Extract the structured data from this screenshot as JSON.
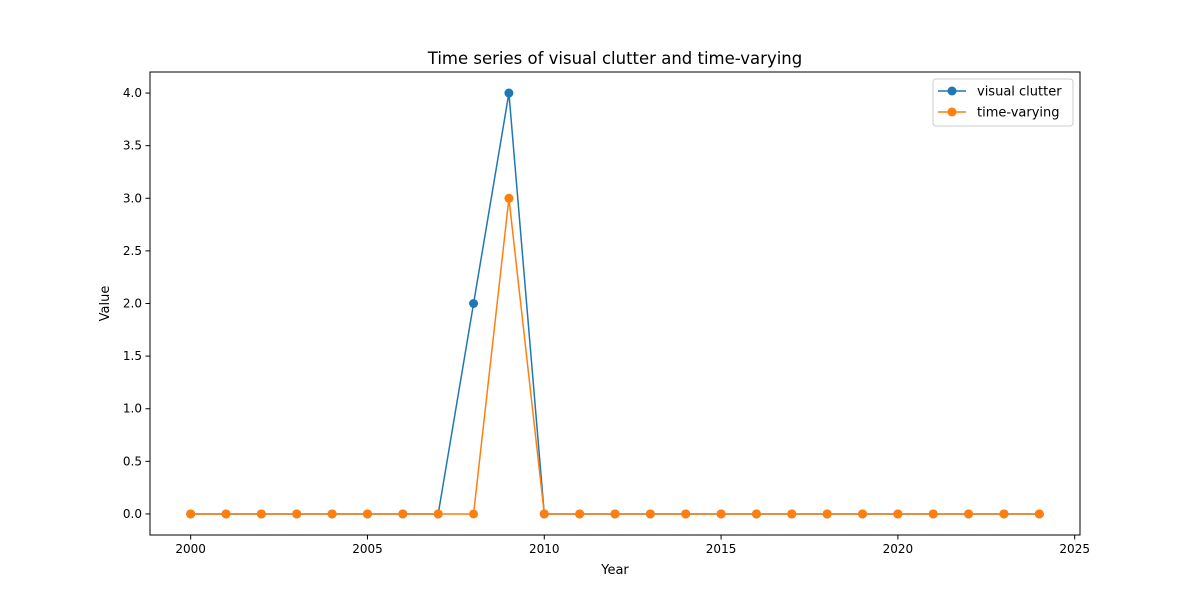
{
  "chart_data": {
    "type": "line",
    "title": "Time series of visual clutter and time-varying",
    "xlabel": "Year",
    "ylabel": "Value",
    "x": [
      2000,
      2001,
      2002,
      2003,
      2004,
      2005,
      2006,
      2007,
      2008,
      2009,
      2010,
      2011,
      2012,
      2013,
      2014,
      2015,
      2016,
      2017,
      2018,
      2019,
      2020,
      2021,
      2022,
      2023,
      2024
    ],
    "series": [
      {
        "name": "visual clutter",
        "color": "#1f77b4",
        "marker": "circle",
        "values": [
          0,
          0,
          0,
          0,
          0,
          0,
          0,
          0,
          2,
          4,
          0,
          0,
          0,
          0,
          0,
          0,
          0,
          0,
          0,
          0,
          0,
          0,
          0,
          0,
          0
        ]
      },
      {
        "name": "time-varying",
        "color": "#ff7f0e",
        "marker": "circle",
        "values": [
          0,
          0,
          0,
          0,
          0,
          0,
          0,
          0,
          0,
          3,
          0,
          0,
          0,
          0,
          0,
          0,
          0,
          0,
          0,
          0,
          0,
          0,
          0,
          0,
          0
        ]
      }
    ],
    "xlim": [
      1998.85,
      2025.15
    ],
    "ylim": [
      -0.2,
      4.2
    ],
    "xticks": [
      2000,
      2005,
      2010,
      2015,
      2020,
      2025
    ],
    "xtick_labels": [
      "2000",
      "2005",
      "2010",
      "2015",
      "2020",
      "2025"
    ],
    "yticks": [
      0,
      0.5,
      1,
      1.5,
      2,
      2.5,
      3,
      3.5,
      4
    ],
    "ytick_labels": [
      "0.0",
      "0.5",
      "1.0",
      "1.5",
      "2.0",
      "2.5",
      "3.0",
      "3.5",
      "4.0"
    ],
    "grid": false,
    "legend_position": "top-right"
  }
}
